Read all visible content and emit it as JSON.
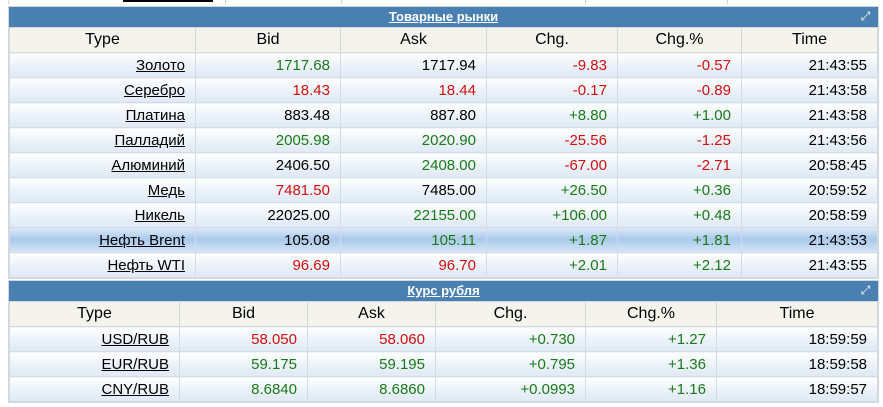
{
  "commodities": {
    "title": "Товарные рынки",
    "columns": [
      "Type",
      "Bid",
      "Ask",
      "Chg.",
      "Chg.%",
      "Time"
    ],
    "rows": [
      {
        "name": "Золото",
        "bid": "1717.68",
        "bid_c": "pos",
        "ask": "1717.94",
        "ask_c": "neu",
        "chg": "-9.83",
        "chg_c": "neg",
        "pct": "-0.57",
        "pct_c": "neg",
        "time": "21:43:55"
      },
      {
        "name": "Серебро",
        "bid": "18.43",
        "bid_c": "neg",
        "ask": "18.44",
        "ask_c": "neg",
        "chg": "-0.17",
        "chg_c": "neg",
        "pct": "-0.89",
        "pct_c": "neg",
        "time": "21:43:58"
      },
      {
        "name": "Платина",
        "bid": "883.48",
        "bid_c": "neu",
        "ask": "887.80",
        "ask_c": "neu",
        "chg": "+8.80",
        "chg_c": "pos",
        "pct": "+1.00",
        "pct_c": "pos",
        "time": "21:43:58"
      },
      {
        "name": "Палладий",
        "bid": "2005.98",
        "bid_c": "pos",
        "ask": "2020.90",
        "ask_c": "pos",
        "chg": "-25.56",
        "chg_c": "neg",
        "pct": "-1.25",
        "pct_c": "neg",
        "time": "21:43:56"
      },
      {
        "name": "Алюминий",
        "bid": "2406.50",
        "bid_c": "neu",
        "ask": "2408.00",
        "ask_c": "pos",
        "chg": "-67.00",
        "chg_c": "neg",
        "pct": "-2.71",
        "pct_c": "neg",
        "time": "20:58:45"
      },
      {
        "name": "Медь",
        "bid": "7481.50",
        "bid_c": "neg",
        "ask": "7485.00",
        "ask_c": "neu",
        "chg": "+26.50",
        "chg_c": "pos",
        "pct": "+0.36",
        "pct_c": "pos",
        "time": "20:59:52"
      },
      {
        "name": "Никель",
        "bid": "22025.00",
        "bid_c": "neu",
        "ask": "22155.00",
        "ask_c": "pos",
        "chg": "+106.00",
        "chg_c": "pos",
        "pct": "+0.48",
        "pct_c": "pos",
        "time": "20:58:59"
      },
      {
        "name": "Нефть Brent",
        "bid": "105.08",
        "bid_c": "neu",
        "ask": "105.11",
        "ask_c": "pos",
        "chg": "+1.87",
        "chg_c": "pos",
        "pct": "+1.81",
        "pct_c": "pos",
        "time": "21:43:53",
        "hl": true
      },
      {
        "name": "Нефть WTI",
        "bid": "96.69",
        "bid_c": "neg",
        "ask": "96.70",
        "ask_c": "neg",
        "chg": "+2.01",
        "chg_c": "pos",
        "pct": "+2.12",
        "pct_c": "pos",
        "time": "21:43:55"
      }
    ]
  },
  "rub": {
    "title": "Курс рубля",
    "columns": [
      "Type",
      "Bid",
      "Ask",
      "Chg.",
      "Chg.%",
      "Time"
    ],
    "rows": [
      {
        "name": "USD/RUB",
        "bid": "58.050",
        "bid_c": "neg",
        "ask": "58.060",
        "ask_c": "neg",
        "chg": "+0.730",
        "chg_c": "pos",
        "pct": "+1.27",
        "pct_c": "pos",
        "time": "18:59:59"
      },
      {
        "name": "EUR/RUB",
        "bid": "59.175",
        "bid_c": "pos",
        "ask": "59.195",
        "ask_c": "pos",
        "chg": "+0.795",
        "chg_c": "pos",
        "pct": "+1.36",
        "pct_c": "pos",
        "time": "18:59:58"
      },
      {
        "name": "CNY/RUB",
        "bid": "8.6840",
        "bid_c": "pos",
        "ask": "8.6860",
        "ask_c": "pos",
        "chg": "+0.0993",
        "chg_c": "pos",
        "pct": "+1.16",
        "pct_c": "pos",
        "time": "18:59:57"
      }
    ]
  },
  "colors": {
    "title_bar": "#4a7fb2",
    "positive": "#1a7a1a",
    "negative": "#d01010"
  },
  "icons": {
    "expand": "expand-icon"
  }
}
